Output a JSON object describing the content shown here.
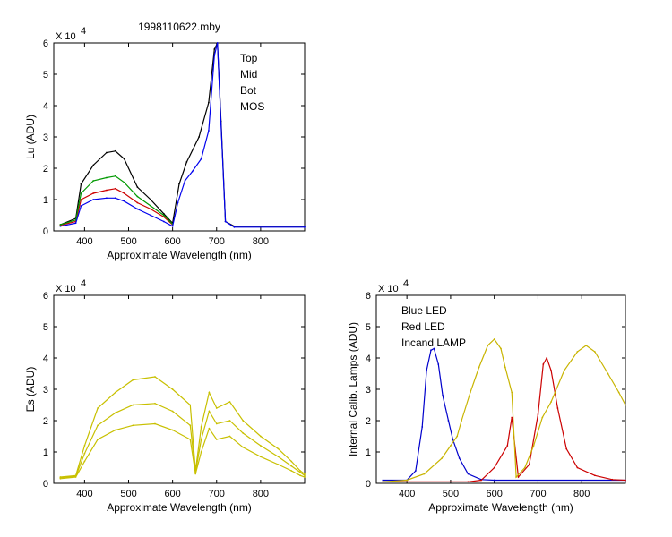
{
  "chart_data": [
    {
      "id": "lu",
      "type": "line",
      "title": "1998110622.mby",
      "xlabel": "Approximate Wavelength (nm)",
      "ylabel": "Lu (ADU)",
      "xlim": [
        330,
        900
      ],
      "ylim": [
        0,
        6
      ],
      "y_multiplier": "X 10",
      "y_multiplier_exp": "4",
      "xticks": [
        400,
        500,
        600,
        700,
        800
      ],
      "yticks": [
        0,
        1,
        2,
        3,
        4,
        5,
        6
      ],
      "legend_position": "top-right",
      "series": [
        {
          "name": "Top",
          "color": "#000000",
          "points": [
            [
              345,
              0.2
            ],
            [
              380,
              0.4
            ],
            [
              392,
              1.5
            ],
            [
              420,
              2.1
            ],
            [
              450,
              2.5
            ],
            [
              470,
              2.55
            ],
            [
              490,
              2.3
            ],
            [
              520,
              1.4
            ],
            [
              550,
              1.0
            ],
            [
              580,
              0.55
            ],
            [
              600,
              0.25
            ],
            [
              615,
              1.5
            ],
            [
              632,
              2.2
            ],
            [
              660,
              3.0
            ],
            [
              682,
              4.1
            ],
            [
              695,
              5.8
            ],
            [
              702,
              6.0
            ],
            [
              710,
              3.5
            ],
            [
              720,
              0.3
            ],
            [
              740,
              0.15
            ],
            [
              900,
              0.15
            ]
          ]
        },
        {
          "name": "Mid",
          "color": "#cc0000",
          "points": [
            [
              345,
              0.18
            ],
            [
              380,
              0.3
            ],
            [
              392,
              1.0
            ],
            [
              420,
              1.2
            ],
            [
              450,
              1.3
            ],
            [
              470,
              1.35
            ],
            [
              490,
              1.2
            ],
            [
              520,
              0.9
            ],
            [
              550,
              0.7
            ],
            [
              580,
              0.45
            ],
            [
              600,
              0.2
            ]
          ]
        },
        {
          "name": "Bot",
          "color": "#009900",
          "points": [
            [
              345,
              0.2
            ],
            [
              380,
              0.35
            ],
            [
              392,
              1.2
            ],
            [
              420,
              1.6
            ],
            [
              450,
              1.7
            ],
            [
              470,
              1.75
            ],
            [
              490,
              1.55
            ],
            [
              520,
              1.1
            ],
            [
              550,
              0.8
            ],
            [
              580,
              0.5
            ],
            [
              600,
              0.22
            ]
          ]
        },
        {
          "name": "MOS",
          "color": "#0000ee",
          "points": [
            [
              345,
              0.15
            ],
            [
              380,
              0.25
            ],
            [
              392,
              0.8
            ],
            [
              420,
              1.0
            ],
            [
              450,
              1.05
            ],
            [
              470,
              1.05
            ],
            [
              490,
              0.95
            ],
            [
              520,
              0.7
            ],
            [
              550,
              0.5
            ],
            [
              580,
              0.3
            ],
            [
              600,
              0.15
            ],
            [
              612,
              0.9
            ],
            [
              628,
              1.6
            ],
            [
              645,
              1.9
            ],
            [
              665,
              2.3
            ],
            [
              682,
              3.2
            ],
            [
              695,
              5.6
            ],
            [
              702,
              6.0
            ],
            [
              710,
              3.4
            ],
            [
              720,
              0.3
            ],
            [
              740,
              0.12
            ],
            [
              900,
              0.12
            ]
          ]
        }
      ]
    },
    {
      "id": "es",
      "type": "line",
      "title": "",
      "xlabel": "Approximate Wavelength (nm)",
      "ylabel": "Es (ADU)",
      "xlim": [
        330,
        900
      ],
      "ylim": [
        0,
        6
      ],
      "y_multiplier": "X 10",
      "y_multiplier_exp": "4",
      "xticks": [
        400,
        500,
        600,
        700,
        800
      ],
      "yticks": [
        0,
        1,
        2,
        3,
        4,
        5,
        6
      ],
      "series": [
        {
          "name": "",
          "color": "#c8c000",
          "points": [
            [
              345,
              0.2
            ],
            [
              380,
              0.25
            ],
            [
              400,
              1.2
            ],
            [
              430,
              2.4
            ],
            [
              470,
              2.9
            ],
            [
              510,
              3.3
            ],
            [
              560,
              3.4
            ],
            [
              600,
              3.0
            ],
            [
              640,
              2.5
            ],
            [
              652,
              0.4
            ],
            [
              665,
              1.8
            ],
            [
              683,
              2.9
            ],
            [
              700,
              2.4
            ],
            [
              730,
              2.6
            ],
            [
              760,
              2.0
            ],
            [
              800,
              1.5
            ],
            [
              840,
              1.1
            ],
            [
              870,
              0.7
            ],
            [
              890,
              0.4
            ],
            [
              900,
              0.3
            ]
          ]
        },
        {
          "name": "",
          "color": "#c8c000",
          "points": [
            [
              345,
              0.18
            ],
            [
              380,
              0.22
            ],
            [
              400,
              0.95
            ],
            [
              430,
              1.85
            ],
            [
              470,
              2.25
            ],
            [
              510,
              2.5
            ],
            [
              560,
              2.55
            ],
            [
              600,
              2.3
            ],
            [
              640,
              1.85
            ],
            [
              652,
              0.35
            ],
            [
              665,
              1.4
            ],
            [
              683,
              2.3
            ],
            [
              700,
              1.9
            ],
            [
              730,
              2.0
            ],
            [
              760,
              1.6
            ],
            [
              800,
              1.2
            ],
            [
              840,
              0.85
            ],
            [
              870,
              0.55
            ],
            [
              890,
              0.35
            ],
            [
              900,
              0.25
            ]
          ]
        },
        {
          "name": "",
          "color": "#c8c000",
          "points": [
            [
              345,
              0.15
            ],
            [
              380,
              0.2
            ],
            [
              400,
              0.7
            ],
            [
              430,
              1.4
            ],
            [
              470,
              1.7
            ],
            [
              510,
              1.85
            ],
            [
              560,
              1.9
            ],
            [
              600,
              1.7
            ],
            [
              640,
              1.4
            ],
            [
              652,
              0.3
            ],
            [
              665,
              1.0
            ],
            [
              683,
              1.75
            ],
            [
              700,
              1.4
            ],
            [
              730,
              1.5
            ],
            [
              760,
              1.15
            ],
            [
              800,
              0.85
            ],
            [
              840,
              0.6
            ],
            [
              870,
              0.4
            ],
            [
              890,
              0.25
            ],
            [
              900,
              0.2
            ]
          ]
        }
      ]
    },
    {
      "id": "lamps",
      "type": "line",
      "title": "",
      "xlabel": "Approximate Wavelength (nm)",
      "ylabel": "Internal Calib. Lamps (ADU)",
      "xlim": [
        330,
        900
      ],
      "ylim": [
        0,
        6
      ],
      "y_multiplier": "X 10",
      "y_multiplier_exp": "4",
      "xticks": [
        400,
        500,
        600,
        700,
        800
      ],
      "yticks": [
        0,
        1,
        2,
        3,
        4,
        5,
        6
      ],
      "legend_position": "top-left",
      "series": [
        {
          "name": "Blue LED",
          "color": "#0000cc",
          "points": [
            [
              345,
              0.1
            ],
            [
              400,
              0.1
            ],
            [
              420,
              0.4
            ],
            [
              435,
              1.8
            ],
            [
              445,
              3.6
            ],
            [
              455,
              4.25
            ],
            [
              462,
              4.3
            ],
            [
              472,
              3.8
            ],
            [
              482,
              2.8
            ],
            [
              495,
              2.0
            ],
            [
              505,
              1.4
            ],
            [
              520,
              0.8
            ],
            [
              540,
              0.3
            ],
            [
              570,
              0.12
            ],
            [
              600,
              0.1
            ],
            [
              900,
              0.1
            ]
          ]
        },
        {
          "name": "Red LED",
          "color": "#cc0000",
          "points": [
            [
              345,
              0.05
            ],
            [
              540,
              0.05
            ],
            [
              570,
              0.1
            ],
            [
              600,
              0.5
            ],
            [
              630,
              1.2
            ],
            [
              640,
              2.1
            ],
            [
              655,
              0.2
            ],
            [
              680,
              0.6
            ],
            [
              700,
              2.2
            ],
            [
              712,
              3.8
            ],
            [
              720,
              4.0
            ],
            [
              730,
              3.6
            ],
            [
              745,
              2.4
            ],
            [
              765,
              1.1
            ],
            [
              790,
              0.5
            ],
            [
              830,
              0.25
            ],
            [
              870,
              0.12
            ],
            [
              900,
              0.1
            ]
          ]
        },
        {
          "name": "Incand LAMP",
          "color": "#c8b400",
          "points": [
            [
              345,
              0.05
            ],
            [
              400,
              0.1
            ],
            [
              440,
              0.3
            ],
            [
              480,
              0.8
            ],
            [
              500,
              1.2
            ],
            [
              515,
              1.5
            ],
            [
              525,
              2.0
            ],
            [
              545,
              2.9
            ],
            [
              565,
              3.7
            ],
            [
              585,
              4.4
            ],
            [
              600,
              4.6
            ],
            [
              615,
              4.3
            ],
            [
              625,
              3.7
            ],
            [
              640,
              2.9
            ],
            [
              650,
              0.2
            ],
            [
              670,
              0.5
            ],
            [
              690,
              1.2
            ],
            [
              710,
              2.1
            ],
            [
              730,
              2.6
            ],
            [
              760,
              3.6
            ],
            [
              790,
              4.2
            ],
            [
              810,
              4.4
            ],
            [
              830,
              4.2
            ],
            [
              860,
              3.5
            ],
            [
              885,
              2.9
            ],
            [
              900,
              2.5
            ]
          ]
        }
      ]
    }
  ]
}
